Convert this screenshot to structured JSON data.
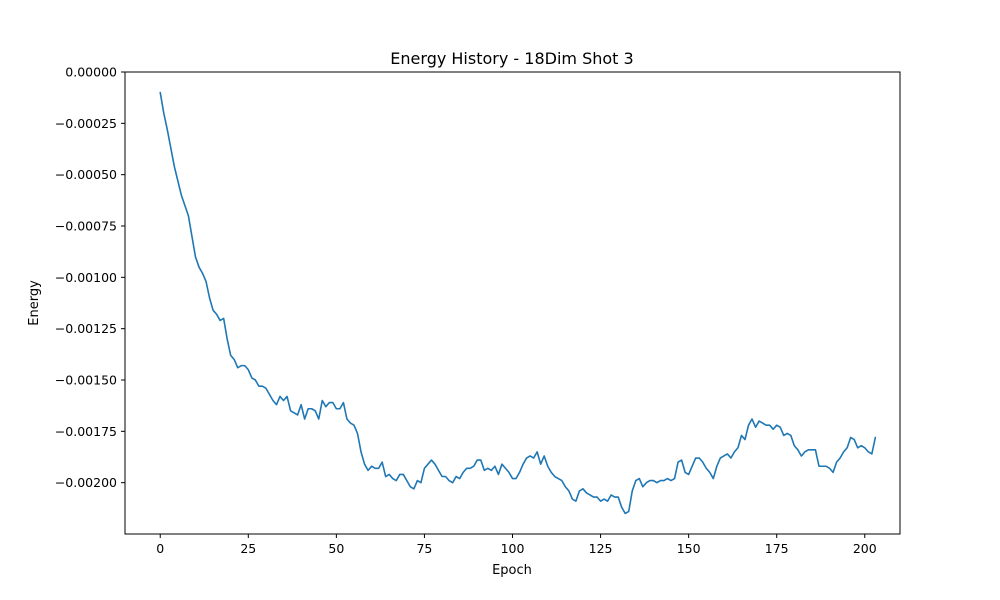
{
  "chart_data": {
    "type": "line",
    "title": "Energy History - 18Dim Shot 3",
    "xlabel": "Epoch",
    "ylabel": "Energy",
    "xlim": [
      -10,
      210
    ],
    "ylim": [
      -0.00225,
      0.0
    ],
    "xticks": [
      0,
      25,
      50,
      75,
      100,
      125,
      150,
      175,
      200
    ],
    "xtick_labels": [
      "0",
      "25",
      "50",
      "75",
      "100",
      "125",
      "150",
      "175",
      "200"
    ],
    "yticks": [
      0.0,
      -0.00025,
      -0.0005,
      -0.00075,
      -0.001,
      -0.00125,
      -0.0015,
      -0.00175,
      -0.002
    ],
    "ytick_labels": [
      "0.00000",
      "−0.00025",
      "−0.00050",
      "−0.00075",
      "−0.00100",
      "−0.00125",
      "−0.00150",
      "−0.00175",
      "−0.00200"
    ],
    "grid": false,
    "line_color": "#1f77b4",
    "series": [
      {
        "x_start": 0,
        "x_step": 1,
        "values": [
          -0.0001,
          -0.0002,
          -0.00028,
          -0.00037,
          -0.00046,
          -0.00053,
          -0.0006,
          -0.00065,
          -0.0007,
          -0.0008,
          -0.0009,
          -0.00095,
          -0.00098,
          -0.00102,
          -0.0011,
          -0.00116,
          -0.00118,
          -0.00121,
          -0.0012,
          -0.0013,
          -0.00138,
          -0.0014,
          -0.00144,
          -0.00143,
          -0.00143,
          -0.00145,
          -0.00149,
          -0.0015,
          -0.00153,
          -0.00153,
          -0.00154,
          -0.00157,
          -0.0016,
          -0.00162,
          -0.00158,
          -0.0016,
          -0.00158,
          -0.00165,
          -0.00166,
          -0.00167,
          -0.00162,
          -0.00169,
          -0.00164,
          -0.00164,
          -0.00165,
          -0.00169,
          -0.0016,
          -0.00163,
          -0.00161,
          -0.00161,
          -0.00164,
          -0.00164,
          -0.00161,
          -0.00169,
          -0.00171,
          -0.00172,
          -0.00176,
          -0.00185,
          -0.00191,
          -0.00194,
          -0.00192,
          -0.00193,
          -0.00193,
          -0.0019,
          -0.00197,
          -0.00196,
          -0.00198,
          -0.00199,
          -0.00196,
          -0.00196,
          -0.00199,
          -0.00202,
          -0.00203,
          -0.00199,
          -0.002,
          -0.00193,
          -0.00191,
          -0.00189,
          -0.00191,
          -0.00194,
          -0.00197,
          -0.00197,
          -0.00199,
          -0.002,
          -0.00197,
          -0.00198,
          -0.00195,
          -0.00193,
          -0.00193,
          -0.00192,
          -0.00189,
          -0.00189,
          -0.00194,
          -0.00193,
          -0.00194,
          -0.00192,
          -0.00196,
          -0.00191,
          -0.00193,
          -0.00195,
          -0.00198,
          -0.00198,
          -0.00195,
          -0.00191,
          -0.00188,
          -0.00187,
          -0.00188,
          -0.00185,
          -0.00191,
          -0.00187,
          -0.00192,
          -0.00195,
          -0.00197,
          -0.00198,
          -0.00199,
          -0.00202,
          -0.00204,
          -0.00208,
          -0.00209,
          -0.00204,
          -0.00203,
          -0.00205,
          -0.00206,
          -0.00207,
          -0.00207,
          -0.00209,
          -0.00208,
          -0.00209,
          -0.00206,
          -0.00207,
          -0.00207,
          -0.00212,
          -0.00215,
          -0.00214,
          -0.00204,
          -0.00199,
          -0.00198,
          -0.00202,
          -0.002,
          -0.00199,
          -0.00199,
          -0.002,
          -0.00199,
          -0.00199,
          -0.00198,
          -0.00199,
          -0.00198,
          -0.0019,
          -0.00189,
          -0.00195,
          -0.00196,
          -0.00192,
          -0.00188,
          -0.00188,
          -0.0019,
          -0.00193,
          -0.00195,
          -0.00198,
          -0.00192,
          -0.00188,
          -0.00187,
          -0.00186,
          -0.00188,
          -0.00185,
          -0.00183,
          -0.00177,
          -0.00179,
          -0.00172,
          -0.00169,
          -0.00173,
          -0.0017,
          -0.00171,
          -0.00172,
          -0.00172,
          -0.00174,
          -0.00172,
          -0.00173,
          -0.00177,
          -0.00176,
          -0.00177,
          -0.00182,
          -0.00184,
          -0.00187,
          -0.00185,
          -0.00184,
          -0.00184,
          -0.00184,
          -0.00192,
          -0.00192,
          -0.00192,
          -0.00193,
          -0.00195,
          -0.0019,
          -0.00188,
          -0.00185,
          -0.00183,
          -0.00178,
          -0.00179,
          -0.00183,
          -0.00182,
          -0.00183,
          -0.00185,
          -0.00186,
          -0.00178
        ]
      }
    ]
  }
}
